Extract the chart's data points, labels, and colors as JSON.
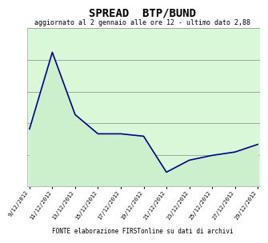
{
  "title": "SPREAD  BTP/BUND",
  "subtitle": "aggiornato al 2 gennaio alle ore 12 - ultimo dato 2,88",
  "footer": "FONTE elaborazione FIRSTonline su dati di archivi",
  "x_labels": [
    "9/12/2012",
    "11/12/2012",
    "13/12/2012",
    "15/12/2012",
    "17/12/2012",
    "19/12/2012",
    "21/12/2012",
    "23/12/2012",
    "25/12/2012",
    "27/12/2012",
    "29/12/2012"
  ],
  "y_values": [
    3.2,
    4.8,
    3.5,
    3.1,
    3.1,
    3.05,
    2.3,
    2.55,
    2.65,
    2.72,
    2.88
  ],
  "y_min": 2.0,
  "y_max": 5.3,
  "n_gridlines": 5,
  "line_color": "#00008B",
  "fill_color": "#ccf0cc",
  "background_color": "#d8f8d8",
  "title_fontsize": 10,
  "subtitle_fontsize": 6,
  "footer_fontsize": 5.5,
  "tick_fontsize": 5
}
